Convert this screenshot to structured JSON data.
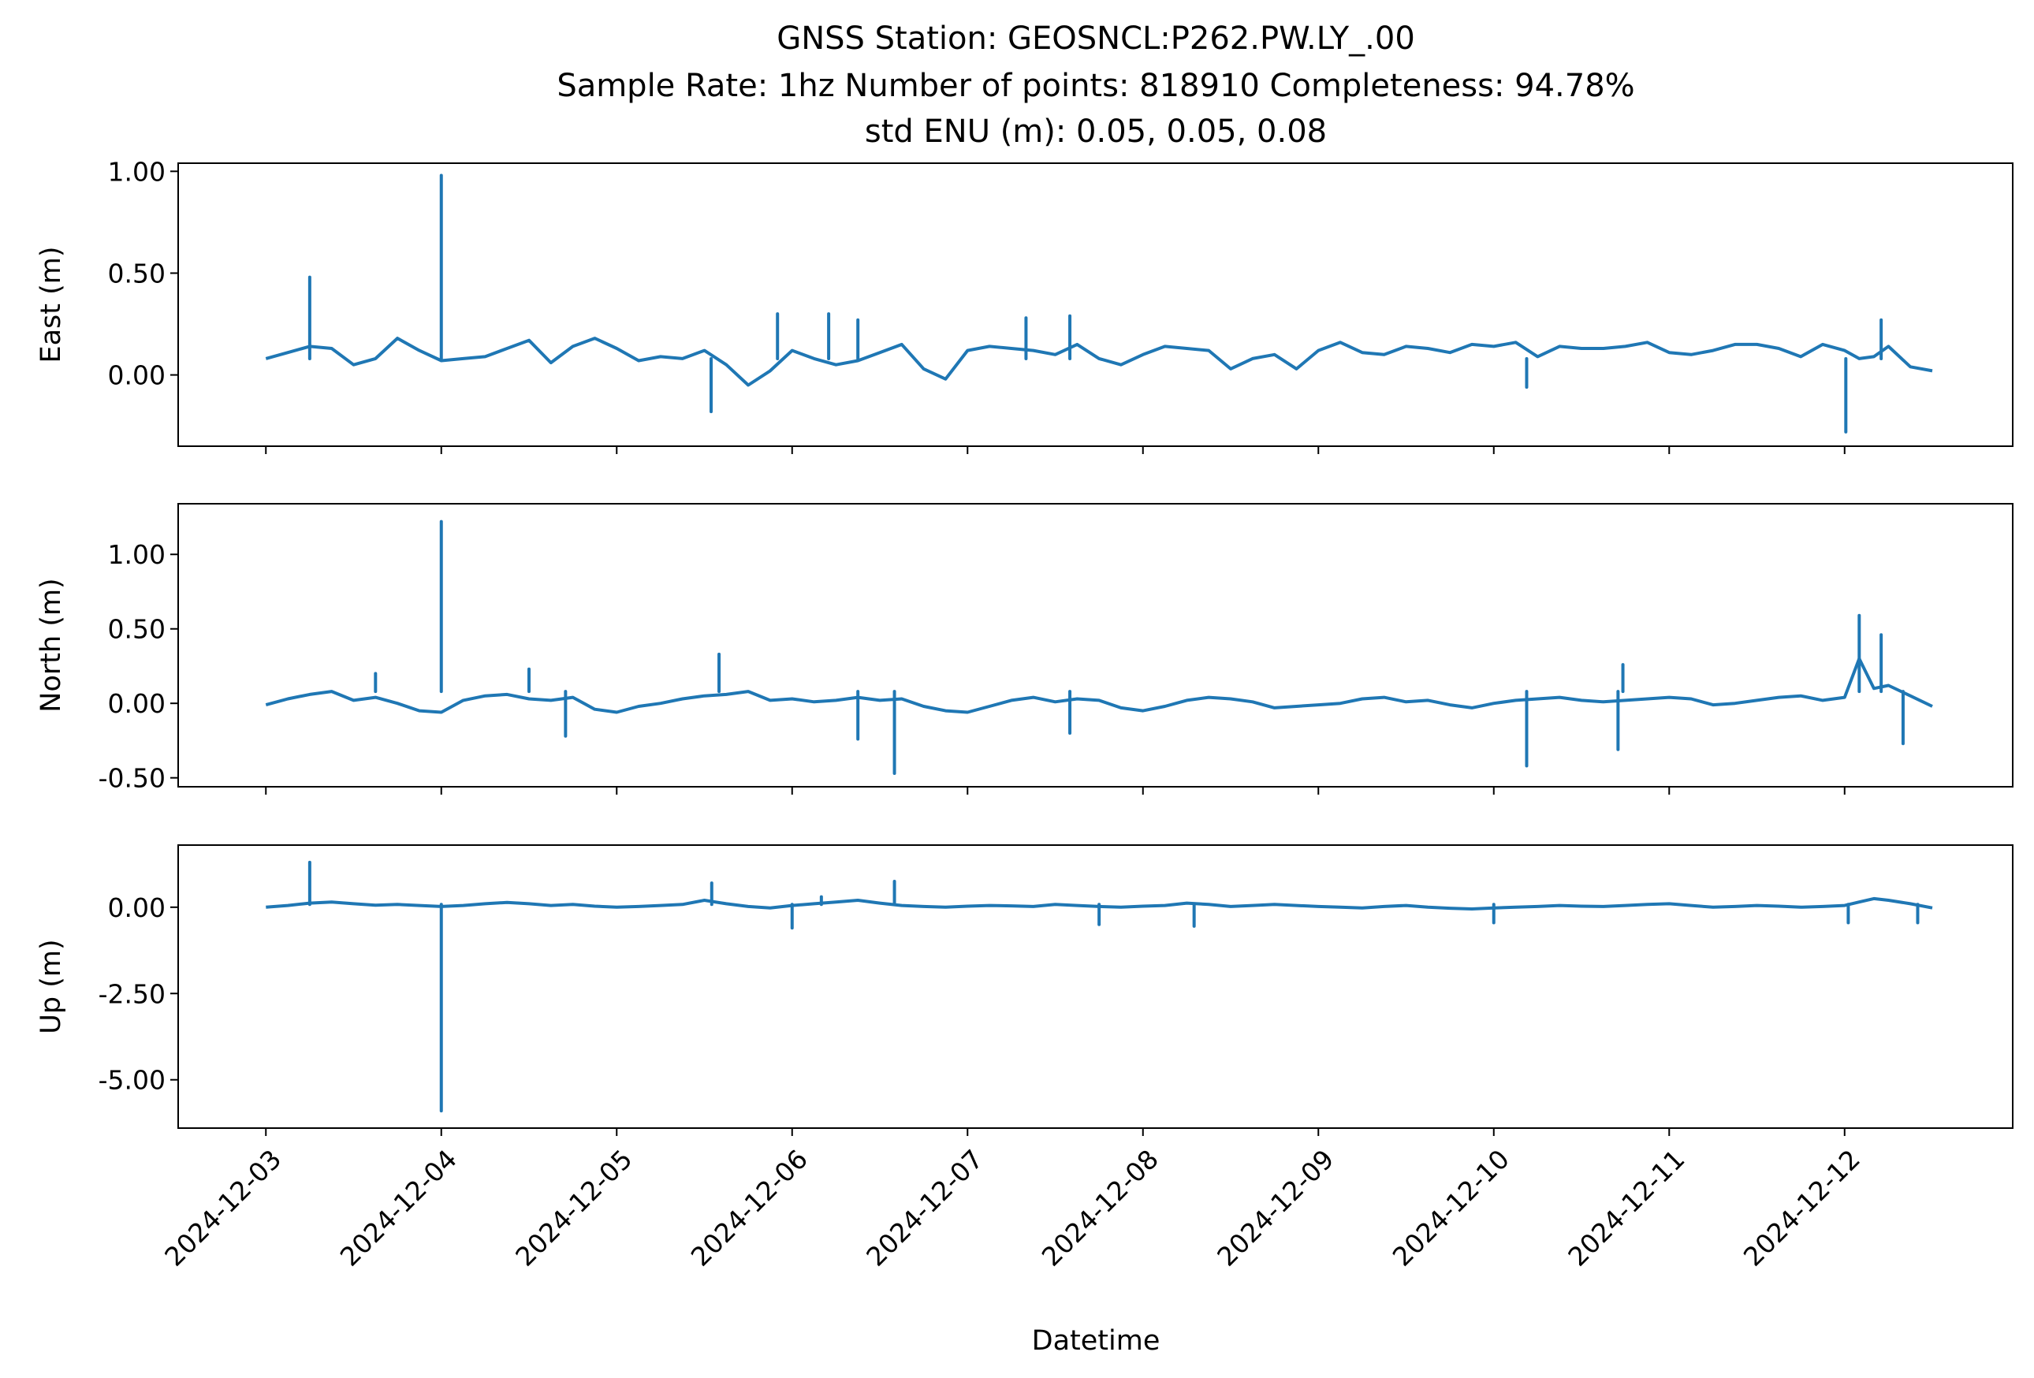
{
  "figure": {
    "title_lines": [
      "GNSS Station: GEOSNCL:P262.PW.LY_.00",
      "Sample Rate: 1hz   Number of points: 818910    Completeness:  94.78%",
      "std ENU (m):  0.05, 0.05, 0.08"
    ],
    "xlabel": "Datetime",
    "line_color": "#1f77b4"
  },
  "chart_data": [
    {
      "type": "line",
      "ylabel": "East (m)",
      "ylim": [
        -0.35,
        1.04
      ],
      "yticks": [
        0.0,
        0.5,
        1.0
      ],
      "ytick_labels": [
        "0.00",
        "0.50",
        "1.00"
      ],
      "xlim": [
        "2024-12-02 12:00",
        "2024-12-12 23:00"
      ],
      "show_xtick_labels": false,
      "series": [
        {
          "x": [
            "2024-12-03 00:00",
            "2024-12-03 03:00",
            "2024-12-03 06:00",
            "2024-12-03 09:00",
            "2024-12-03 12:00",
            "2024-12-03 15:00",
            "2024-12-03 18:00",
            "2024-12-03 21:00",
            "2024-12-04 00:00",
            "2024-12-04 03:00",
            "2024-12-04 06:00",
            "2024-12-04 09:00",
            "2024-12-04 12:00",
            "2024-12-04 15:00",
            "2024-12-04 18:00",
            "2024-12-04 21:00",
            "2024-12-05 00:00",
            "2024-12-05 03:00",
            "2024-12-05 06:00",
            "2024-12-05 09:00",
            "2024-12-05 12:00",
            "2024-12-05 15:00",
            "2024-12-05 18:00",
            "2024-12-05 21:00",
            "2024-12-06 00:00",
            "2024-12-06 03:00",
            "2024-12-06 06:00",
            "2024-12-06 09:00",
            "2024-12-06 12:00",
            "2024-12-06 15:00",
            "2024-12-06 18:00",
            "2024-12-06 21:00",
            "2024-12-07 00:00",
            "2024-12-07 03:00",
            "2024-12-07 06:00",
            "2024-12-07 09:00",
            "2024-12-07 12:00",
            "2024-12-07 15:00",
            "2024-12-07 18:00",
            "2024-12-07 21:00",
            "2024-12-08 00:00",
            "2024-12-08 03:00",
            "2024-12-08 06:00",
            "2024-12-08 09:00",
            "2024-12-08 12:00",
            "2024-12-08 15:00",
            "2024-12-08 18:00",
            "2024-12-08 21:00",
            "2024-12-09 00:00",
            "2024-12-09 03:00",
            "2024-12-09 06:00",
            "2024-12-09 09:00",
            "2024-12-09 12:00",
            "2024-12-09 15:00",
            "2024-12-09 18:00",
            "2024-12-09 21:00",
            "2024-12-10 00:00",
            "2024-12-10 03:00",
            "2024-12-10 06:00",
            "2024-12-10 09:00",
            "2024-12-10 12:00",
            "2024-12-10 15:00",
            "2024-12-10 18:00",
            "2024-12-10 21:00",
            "2024-12-11 00:00",
            "2024-12-11 03:00",
            "2024-12-11 06:00",
            "2024-12-11 09:00",
            "2024-12-11 12:00",
            "2024-12-11 15:00",
            "2024-12-11 18:00",
            "2024-12-11 21:00",
            "2024-12-12 00:00",
            "2024-12-12 02:00",
            "2024-12-12 04:00",
            "2024-12-12 06:00",
            "2024-12-12 09:00",
            "2024-12-12 12:00"
          ],
          "y": [
            0.08,
            0.11,
            0.14,
            0.13,
            0.05,
            0.08,
            0.18,
            0.12,
            0.07,
            0.08,
            0.09,
            0.13,
            0.17,
            0.06,
            0.14,
            0.18,
            0.13,
            0.07,
            0.09,
            0.08,
            0.12,
            0.05,
            -0.05,
            0.02,
            0.12,
            0.08,
            0.05,
            0.07,
            0.11,
            0.15,
            0.03,
            -0.02,
            0.12,
            0.14,
            0.13,
            0.12,
            0.1,
            0.15,
            0.08,
            0.05,
            0.1,
            0.14,
            0.13,
            0.12,
            0.03,
            0.08,
            0.1,
            0.03,
            0.12,
            0.16,
            0.11,
            0.1,
            0.14,
            0.13,
            0.11,
            0.15,
            0.14,
            0.16,
            0.09,
            0.14,
            0.13,
            0.13,
            0.14,
            0.16,
            0.11,
            0.1,
            0.12,
            0.15,
            0.15,
            0.13,
            0.09,
            0.15,
            0.12,
            0.08,
            0.09,
            0.14,
            0.04,
            0.02
          ],
          "spikes": [
            {
              "x": "2024-12-03 06:00",
              "y": 0.48
            },
            {
              "x": "2024-12-04 00:00",
              "y": 0.98
            },
            {
              "x": "2024-12-05 12:55",
              "y": -0.18
            },
            {
              "x": "2024-12-05 22:00",
              "y": 0.3
            },
            {
              "x": "2024-12-06 05:00",
              "y": 0.3
            },
            {
              "x": "2024-12-06 09:00",
              "y": 0.27
            },
            {
              "x": "2024-12-07 08:00",
              "y": 0.28
            },
            {
              "x": "2024-12-07 14:00",
              "y": 0.29
            },
            {
              "x": "2024-12-10 04:30",
              "y": -0.06
            },
            {
              "x": "2024-12-12 00:10",
              "y": -0.28
            },
            {
              "x": "2024-12-12 05:00",
              "y": 0.27
            }
          ]
        }
      ]
    },
    {
      "type": "line",
      "ylabel": "North (m)",
      "ylim": [
        -0.56,
        1.34
      ],
      "yticks": [
        -0.5,
        0.0,
        0.5,
        1.0
      ],
      "ytick_labels": [
        "-0.50",
        "0.00",
        "0.50",
        "1.00"
      ],
      "xlim": [
        "2024-12-02 12:00",
        "2024-12-12 23:00"
      ],
      "show_xtick_labels": false,
      "series": [
        {
          "x": [
            "2024-12-03 00:00",
            "2024-12-03 03:00",
            "2024-12-03 06:00",
            "2024-12-03 09:00",
            "2024-12-03 12:00",
            "2024-12-03 15:00",
            "2024-12-03 18:00",
            "2024-12-03 21:00",
            "2024-12-04 00:00",
            "2024-12-04 03:00",
            "2024-12-04 06:00",
            "2024-12-04 09:00",
            "2024-12-04 12:00",
            "2024-12-04 15:00",
            "2024-12-04 18:00",
            "2024-12-04 21:00",
            "2024-12-05 00:00",
            "2024-12-05 03:00",
            "2024-12-05 06:00",
            "2024-12-05 09:00",
            "2024-12-05 12:00",
            "2024-12-05 15:00",
            "2024-12-05 18:00",
            "2024-12-05 21:00",
            "2024-12-06 00:00",
            "2024-12-06 03:00",
            "2024-12-06 06:00",
            "2024-12-06 09:00",
            "2024-12-06 12:00",
            "2024-12-06 15:00",
            "2024-12-06 18:00",
            "2024-12-06 21:00",
            "2024-12-07 00:00",
            "2024-12-07 03:00",
            "2024-12-07 06:00",
            "2024-12-07 09:00",
            "2024-12-07 12:00",
            "2024-12-07 15:00",
            "2024-12-07 18:00",
            "2024-12-07 21:00",
            "2024-12-08 00:00",
            "2024-12-08 03:00",
            "2024-12-08 06:00",
            "2024-12-08 09:00",
            "2024-12-08 12:00",
            "2024-12-08 15:00",
            "2024-12-08 18:00",
            "2024-12-08 21:00",
            "2024-12-09 00:00",
            "2024-12-09 03:00",
            "2024-12-09 06:00",
            "2024-12-09 09:00",
            "2024-12-09 12:00",
            "2024-12-09 15:00",
            "2024-12-09 18:00",
            "2024-12-09 21:00",
            "2024-12-10 00:00",
            "2024-12-10 03:00",
            "2024-12-10 06:00",
            "2024-12-10 09:00",
            "2024-12-10 12:00",
            "2024-12-10 15:00",
            "2024-12-10 18:00",
            "2024-12-10 21:00",
            "2024-12-11 00:00",
            "2024-12-11 03:00",
            "2024-12-11 06:00",
            "2024-12-11 09:00",
            "2024-12-11 12:00",
            "2024-12-11 15:00",
            "2024-12-11 18:00",
            "2024-12-11 21:00",
            "2024-12-12 00:00",
            "2024-12-12 02:00",
            "2024-12-12 04:00",
            "2024-12-12 06:00",
            "2024-12-12 09:00",
            "2024-12-12 12:00"
          ],
          "y": [
            -0.01,
            0.03,
            0.06,
            0.08,
            0.02,
            0.04,
            0.0,
            -0.05,
            -0.06,
            0.02,
            0.05,
            0.06,
            0.03,
            0.02,
            0.04,
            -0.04,
            -0.06,
            -0.02,
            0.0,
            0.03,
            0.05,
            0.06,
            0.08,
            0.02,
            0.03,
            0.01,
            0.02,
            0.04,
            0.02,
            0.03,
            -0.02,
            -0.05,
            -0.06,
            -0.02,
            0.02,
            0.04,
            0.01,
            0.03,
            0.02,
            -0.03,
            -0.05,
            -0.02,
            0.02,
            0.04,
            0.03,
            0.01,
            -0.03,
            -0.02,
            -0.01,
            0.0,
            0.03,
            0.04,
            0.01,
            0.02,
            -0.01,
            -0.03,
            0.0,
            0.02,
            0.03,
            0.04,
            0.02,
            0.01,
            0.02,
            0.03,
            0.04,
            0.03,
            -0.01,
            0.0,
            0.02,
            0.04,
            0.05,
            0.02,
            0.04,
            0.3,
            0.1,
            0.12,
            0.05,
            -0.02
          ],
          "spikes": [
            {
              "x": "2024-12-03 15:00",
              "y": 0.2
            },
            {
              "x": "2024-12-04 00:00",
              "y": 1.22
            },
            {
              "x": "2024-12-04 12:00",
              "y": 0.23
            },
            {
              "x": "2024-12-04 17:00",
              "y": -0.22
            },
            {
              "x": "2024-12-05 14:00",
              "y": 0.33
            },
            {
              "x": "2024-12-06 09:00",
              "y": -0.24
            },
            {
              "x": "2024-12-06 14:00",
              "y": -0.47
            },
            {
              "x": "2024-12-07 14:00",
              "y": -0.2
            },
            {
              "x": "2024-12-10 04:30",
              "y": -0.42
            },
            {
              "x": "2024-12-10 17:00",
              "y": -0.31
            },
            {
              "x": "2024-12-10 17:40",
              "y": 0.26
            },
            {
              "x": "2024-12-12 02:00",
              "y": 0.59
            },
            {
              "x": "2024-12-12 05:00",
              "y": 0.46
            },
            {
              "x": "2024-12-12 08:00",
              "y": -0.27
            }
          ]
        }
      ]
    },
    {
      "type": "line",
      "ylabel": "Up (m)",
      "ylim": [
        -6.4,
        1.8
      ],
      "yticks": [
        -5.0,
        -2.5,
        0.0
      ],
      "ytick_labels": [
        "-5.00",
        "-2.50",
        "0.00"
      ],
      "xlim": [
        "2024-12-02 12:00",
        "2024-12-12 23:00"
      ],
      "xticks": [
        "2024-12-03",
        "2024-12-04",
        "2024-12-05",
        "2024-12-06",
        "2024-12-07",
        "2024-12-08",
        "2024-12-09",
        "2024-12-10",
        "2024-12-11",
        "2024-12-12"
      ],
      "show_xtick_labels": true,
      "series": [
        {
          "x": [
            "2024-12-03 00:00",
            "2024-12-03 03:00",
            "2024-12-03 06:00",
            "2024-12-03 09:00",
            "2024-12-03 12:00",
            "2024-12-03 15:00",
            "2024-12-03 18:00",
            "2024-12-03 21:00",
            "2024-12-04 00:00",
            "2024-12-04 03:00",
            "2024-12-04 06:00",
            "2024-12-04 09:00",
            "2024-12-04 12:00",
            "2024-12-04 15:00",
            "2024-12-04 18:00",
            "2024-12-04 21:00",
            "2024-12-05 00:00",
            "2024-12-05 03:00",
            "2024-12-05 06:00",
            "2024-12-05 09:00",
            "2024-12-05 12:00",
            "2024-12-05 15:00",
            "2024-12-05 18:00",
            "2024-12-05 21:00",
            "2024-12-06 00:00",
            "2024-12-06 03:00",
            "2024-12-06 06:00",
            "2024-12-06 09:00",
            "2024-12-06 12:00",
            "2024-12-06 15:00",
            "2024-12-06 18:00",
            "2024-12-06 21:00",
            "2024-12-07 00:00",
            "2024-12-07 03:00",
            "2024-12-07 06:00",
            "2024-12-07 09:00",
            "2024-12-07 12:00",
            "2024-12-07 15:00",
            "2024-12-07 18:00",
            "2024-12-07 21:00",
            "2024-12-08 00:00",
            "2024-12-08 03:00",
            "2024-12-08 06:00",
            "2024-12-08 09:00",
            "2024-12-08 12:00",
            "2024-12-08 15:00",
            "2024-12-08 18:00",
            "2024-12-08 21:00",
            "2024-12-09 00:00",
            "2024-12-09 03:00",
            "2024-12-09 06:00",
            "2024-12-09 09:00",
            "2024-12-09 12:00",
            "2024-12-09 15:00",
            "2024-12-09 18:00",
            "2024-12-09 21:00",
            "2024-12-10 00:00",
            "2024-12-10 03:00",
            "2024-12-10 06:00",
            "2024-12-10 09:00",
            "2024-12-10 12:00",
            "2024-12-10 15:00",
            "2024-12-10 18:00",
            "2024-12-10 21:00",
            "2024-12-11 00:00",
            "2024-12-11 03:00",
            "2024-12-11 06:00",
            "2024-12-11 09:00",
            "2024-12-11 12:00",
            "2024-12-11 15:00",
            "2024-12-11 18:00",
            "2024-12-11 21:00",
            "2024-12-12 00:00",
            "2024-12-12 02:00",
            "2024-12-12 04:00",
            "2024-12-12 06:00",
            "2024-12-12 09:00",
            "2024-12-12 12:00"
          ],
          "y": [
            0.0,
            0.05,
            0.12,
            0.15,
            0.1,
            0.06,
            0.08,
            0.05,
            0.02,
            0.05,
            0.1,
            0.14,
            0.1,
            0.05,
            0.08,
            0.03,
            0.0,
            0.02,
            0.05,
            0.08,
            0.2,
            0.1,
            0.02,
            -0.02,
            0.05,
            0.1,
            0.15,
            0.2,
            0.12,
            0.05,
            0.02,
            0.0,
            0.03,
            0.05,
            0.04,
            0.02,
            0.08,
            0.05,
            0.02,
            0.0,
            0.03,
            0.05,
            0.12,
            0.08,
            0.02,
            0.05,
            0.08,
            0.05,
            0.02,
            0.0,
            -0.02,
            0.02,
            0.05,
            0.0,
            -0.03,
            -0.05,
            -0.02,
            0.0,
            0.02,
            0.05,
            0.03,
            0.02,
            0.05,
            0.08,
            0.1,
            0.05,
            0.0,
            0.02,
            0.05,
            0.03,
            0.0,
            0.02,
            0.05,
            0.15,
            0.25,
            0.2,
            0.1,
            -0.02
          ],
          "spikes": [
            {
              "x": "2024-12-03 06:00",
              "y": 1.3
            },
            {
              "x": "2024-12-04 00:00",
              "y": -5.9
            },
            {
              "x": "2024-12-05 13:00",
              "y": 0.7
            },
            {
              "x": "2024-12-06 00:00",
              "y": -0.6
            },
            {
              "x": "2024-12-06 04:00",
              "y": 0.3
            },
            {
              "x": "2024-12-06 14:00",
              "y": 0.75
            },
            {
              "x": "2024-12-07 18:00",
              "y": -0.5
            },
            {
              "x": "2024-12-08 07:00",
              "y": -0.55
            },
            {
              "x": "2024-12-10 00:00",
              "y": -0.45
            },
            {
              "x": "2024-12-12 00:30",
              "y": -0.45
            },
            {
              "x": "2024-12-12 10:00",
              "y": -0.45
            }
          ]
        }
      ]
    }
  ]
}
